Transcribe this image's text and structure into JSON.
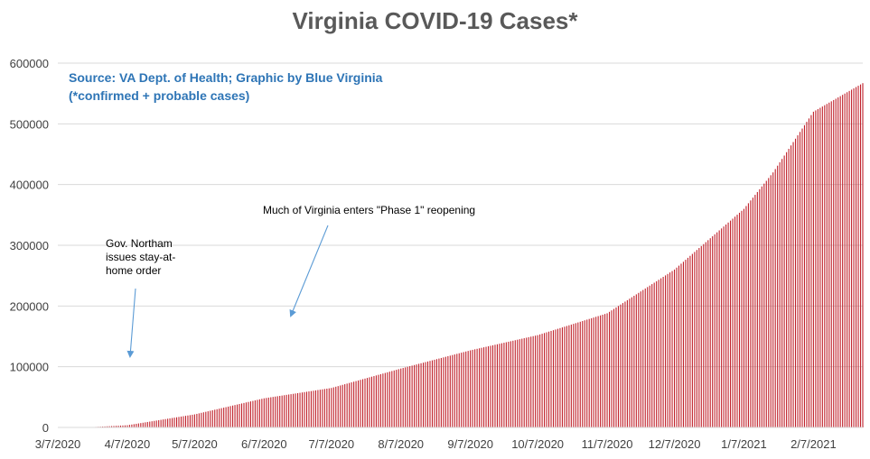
{
  "colors": {
    "bar": "#c0202a",
    "title": "#595959",
    "subtitle": "#2e75b6",
    "grid": "#d9d9d9",
    "arrow": "#5b9bd5",
    "axis_text": "#404040"
  },
  "chart_data": {
    "type": "bar",
    "title": "Virginia COVID-19 Cases*",
    "subtitle_lines": [
      "Source: VA Dept. of Health; Graphic by Blue Virginia",
      "(*confirmed + probable cases)"
    ],
    "xlabel": "",
    "ylabel": "",
    "ylim": [
      0,
      600000
    ],
    "y_ticks": [
      0,
      100000,
      200000,
      300000,
      400000,
      500000,
      600000
    ],
    "y_tick_labels": [
      "0",
      "100000",
      "200000",
      "300000",
      "400000",
      "500000",
      "600000"
    ],
    "x_tick_labels": [
      "3/7/2020",
      "4/7/2020",
      "5/7/2020",
      "6/7/2020",
      "7/7/2020",
      "8/7/2020",
      "9/7/2020",
      "10/7/2020",
      "11/7/2020",
      "12/7/2020",
      "1/7/2021",
      "2/7/2021"
    ],
    "x_start": "3/7/2020",
    "x_end": "3/1/2021",
    "grid": true,
    "legend": "none",
    "anchors": [
      [
        "3/7/2020",
        0
      ],
      [
        "3/20/2020",
        100
      ],
      [
        "4/7/2020",
        3600
      ],
      [
        "5/7/2020",
        21500
      ],
      [
        "6/7/2020",
        48000
      ],
      [
        "7/7/2020",
        65000
      ],
      [
        "8/7/2020",
        97000
      ],
      [
        "9/7/2020",
        127000
      ],
      [
        "10/7/2020",
        152000
      ],
      [
        "11/7/2020",
        188000
      ],
      [
        "12/7/2020",
        260000
      ],
      [
        "1/7/2021",
        360000
      ],
      [
        "1/20/2021",
        420000
      ],
      [
        "2/7/2021",
        520000
      ],
      [
        "3/1/2021",
        567000
      ]
    ],
    "annotations": [
      {
        "text_lines": [
          "Gov. Northam",
          "issues stay-at-",
          "home order"
        ],
        "points_to": "3/30/2020"
      },
      {
        "text_lines": [
          "Much of Virginia enters \"Phase 1\" reopening"
        ],
        "points_to": "5/15/2020"
      }
    ]
  }
}
